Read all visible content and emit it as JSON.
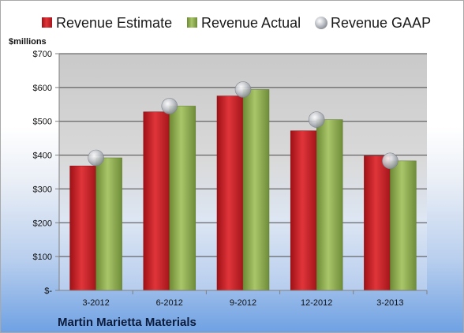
{
  "chart_data": {
    "type": "bar",
    "title": "",
    "ylabel": "$millions",
    "xlabel": "",
    "company": "Martin Marietta Materials",
    "categories": [
      "3-2012",
      "6-2012",
      "9-2012",
      "12-2012",
      "3-2013"
    ],
    "series": [
      {
        "name": "Revenue Estimate",
        "type": "bar",
        "color": "#d4252a",
        "values": [
          368,
          528,
          575,
          472,
          398
        ]
      },
      {
        "name": "Revenue Actual",
        "type": "bar",
        "color": "#8fae52",
        "values": [
          392,
          545,
          594,
          505,
          383
        ]
      },
      {
        "name": "Revenue GAAP",
        "type": "marker",
        "color": "#b8bcc2",
        "values": [
          392,
          545,
          594,
          505,
          383
        ]
      }
    ],
    "ylim": [
      0,
      700
    ],
    "yticks": [
      0,
      100,
      200,
      300,
      400,
      500,
      600,
      700
    ],
    "ytick_labels": [
      "$-",
      "$100",
      "$200",
      "$300",
      "$400",
      "$500",
      "$600",
      "$700"
    ],
    "grid": true,
    "legend_position": "top"
  }
}
